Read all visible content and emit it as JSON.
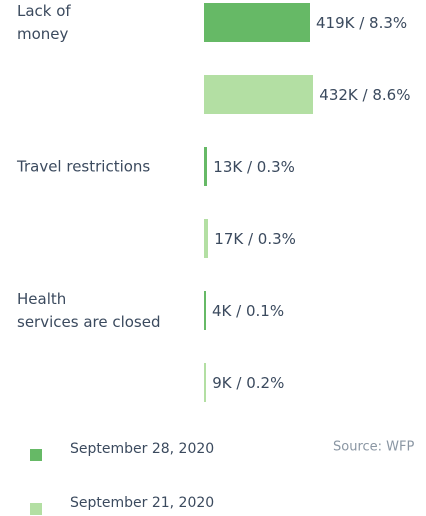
{
  "chart_data": {
    "type": "bar",
    "orientation": "horizontal",
    "categories": [
      "Lack of\nmoney",
      "Travel restrictions",
      "Health\nservices are closed"
    ],
    "series": [
      {
        "name": "September 28, 2020",
        "color": "#66b966",
        "values": [
          419000,
          13000,
          4000
        ],
        "value_labels": [
          "419K / 8.3%",
          "13K / 0.3%",
          "4K / 0.1%"
        ]
      },
      {
        "name": "September 21, 2020",
        "color": "#b3dfa3",
        "values": [
          432000,
          17000,
          9000
        ],
        "value_labels": [
          "432K / 8.6%",
          "17K / 0.3%",
          "9K / 0.2%"
        ]
      }
    ],
    "source": "Source: WFP"
  }
}
